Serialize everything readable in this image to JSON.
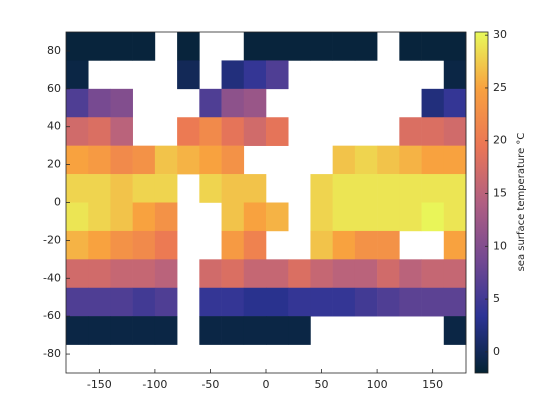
{
  "chart_data": {
    "type": "heatmap",
    "x": [
      -170,
      -150,
      -130,
      -110,
      -90,
      -70,
      -50,
      -30,
      -10,
      10,
      30,
      50,
      70,
      90,
      110,
      130,
      150,
      170
    ],
    "y": [
      82.5,
      67.5,
      52.5,
      37.5,
      22.5,
      7.5,
      -7.5,
      -22.5,
      -37.5,
      -52.5,
      -67.5,
      -82.5
    ],
    "values": [
      [
        -1.5,
        -1.5,
        -1.5,
        -1.5,
        null,
        -1.5,
        null,
        null,
        -1.5,
        -1.5,
        -1.5,
        -1.5,
        -1.5,
        -1.5,
        null,
        -1.5,
        -1.5,
        -1.5
      ],
      [
        -1,
        null,
        null,
        null,
        null,
        0,
        null,
        2,
        4,
        6,
        null,
        null,
        null,
        null,
        null,
        null,
        null,
        -1
      ],
      [
        6,
        9,
        10,
        null,
        null,
        null,
        6,
        11,
        12,
        null,
        null,
        null,
        null,
        null,
        null,
        null,
        2,
        4
      ],
      [
        17,
        18,
        15,
        null,
        null,
        20,
        22,
        19,
        17,
        19,
        null,
        null,
        null,
        null,
        null,
        18,
        18,
        17
      ],
      [
        25,
        24,
        22,
        23,
        27,
        26,
        25,
        23,
        null,
        null,
        null,
        null,
        27,
        28,
        27,
        26,
        25,
        25
      ],
      [
        28,
        28,
        27,
        28,
        28,
        null,
        28,
        27,
        27,
        null,
        null,
        28,
        29,
        29,
        29,
        29,
        29,
        29
      ],
      [
        29,
        28,
        27,
        25,
        23,
        null,
        null,
        27,
        25,
        26,
        null,
        28,
        29,
        29,
        29,
        29,
        30,
        29
      ],
      [
        26,
        25,
        23,
        22,
        20,
        null,
        null,
        24,
        21,
        null,
        null,
        27,
        25,
        23,
        23,
        null,
        null,
        25
      ],
      [
        17,
        17,
        16,
        16,
        15,
        null,
        17,
        18,
        16,
        16,
        18,
        16,
        15,
        15,
        17,
        15,
        16,
        16
      ],
      [
        6,
        6,
        6,
        5,
        6,
        null,
        4,
        4,
        3,
        3,
        4,
        4,
        4,
        5,
        6,
        7,
        7,
        7
      ],
      [
        -1,
        -1,
        -1,
        -1,
        -1,
        null,
        -1,
        -1,
        -1,
        -1,
        -1,
        null,
        null,
        null,
        null,
        null,
        null,
        -1
      ],
      [
        null,
        null,
        null,
        null,
        null,
        null,
        null,
        null,
        null,
        null,
        null,
        null,
        null,
        null,
        null,
        null,
        null,
        null
      ]
    ],
    "xlim": [
      -180,
      180
    ],
    "ylim": [
      -90,
      90
    ],
    "xticks": [
      -150,
      -100,
      -50,
      0,
      50,
      100,
      150
    ],
    "yticks": [
      -80,
      -60,
      -40,
      -20,
      0,
      20,
      40,
      60,
      80
    ],
    "colormap": [
      "#042333",
      "#2c3395",
      "#744992",
      "#b15f82",
      "#eb7655",
      "#f8a13f",
      "#e8fa5b"
    ],
    "colorbar": {
      "label": "sea surface temperature °C",
      "lim": [
        -2,
        30.3
      ],
      "ticks": [
        0,
        5,
        10,
        15,
        20,
        25,
        30
      ]
    }
  }
}
